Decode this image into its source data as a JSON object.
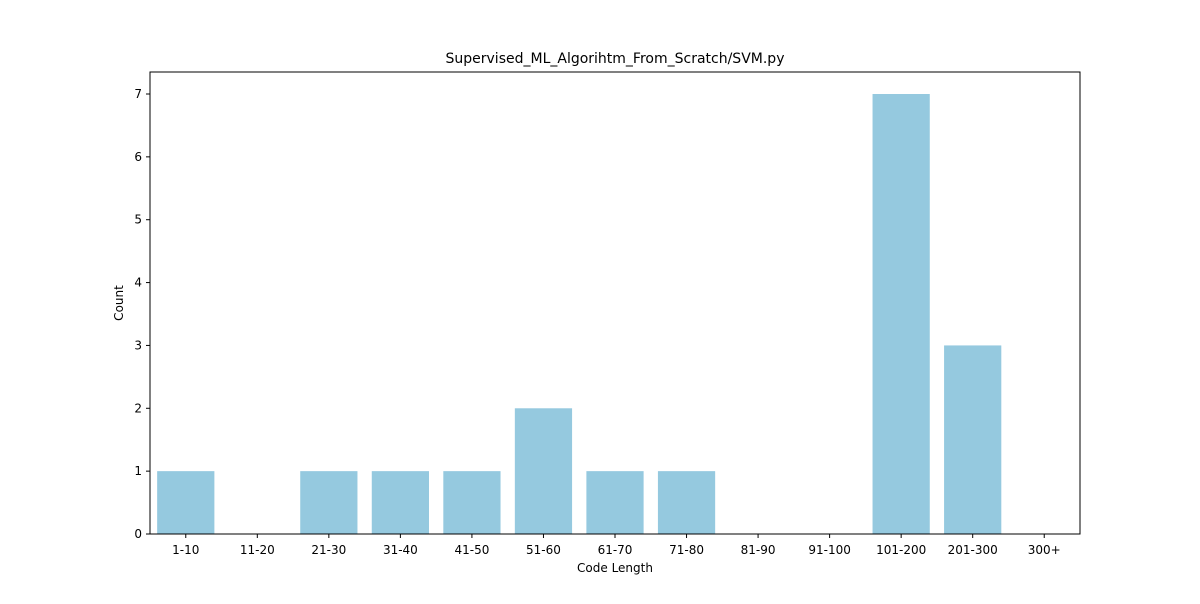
{
  "chart_data": {
    "type": "bar",
    "title": "Supervised_ML_Algorihtm_From_Scratch/SVM.py",
    "xlabel": "Code Length",
    "ylabel": "Count",
    "categories": [
      "1-10",
      "11-20",
      "21-30",
      "31-40",
      "41-50",
      "51-60",
      "61-70",
      "71-80",
      "81-90",
      "91-100",
      "101-200",
      "201-300",
      "300+"
    ],
    "values": [
      1,
      0,
      1,
      1,
      1,
      2,
      1,
      1,
      0,
      0,
      7,
      3,
      0
    ],
    "yticks": [
      0,
      1,
      2,
      3,
      4,
      5,
      6,
      7
    ],
    "ylim": [
      0,
      7.35
    ],
    "bar_color": "#95c9df",
    "grid": false,
    "legend": "none"
  }
}
